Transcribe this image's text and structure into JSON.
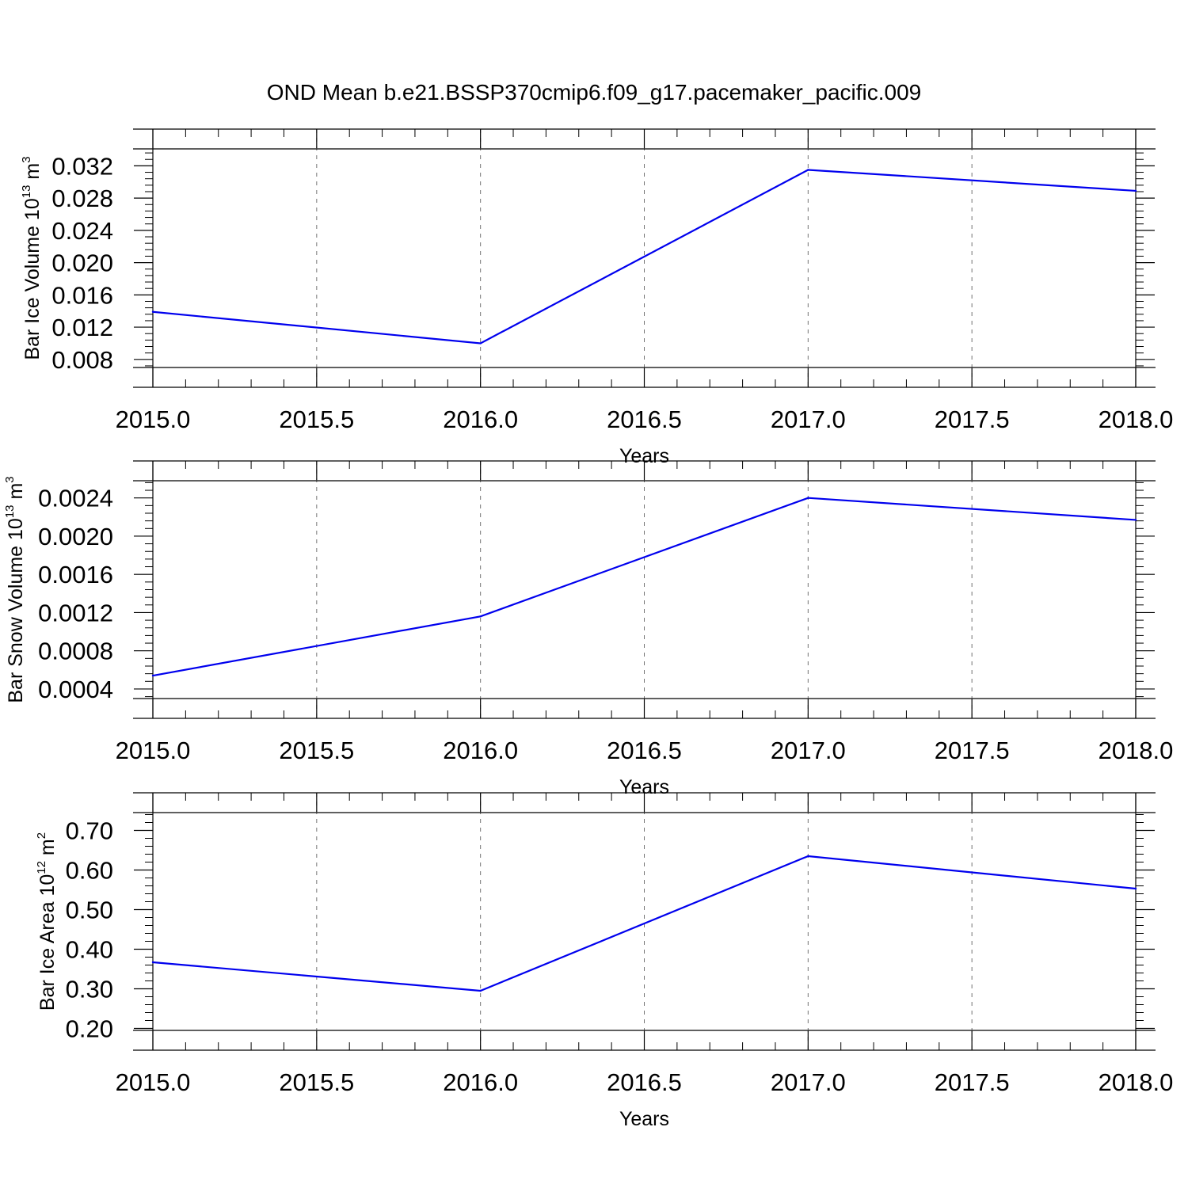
{
  "title": "OND Mean b.e21.BSSP370cmip6.f09_g17.pacemaker_pacific.009",
  "line_color": "#0000ee",
  "chart_data": [
    {
      "type": "line",
      "x": [
        2015,
        2016,
        2017,
        2018
      ],
      "y": [
        0.0139,
        0.01,
        0.0315,
        0.0289
      ],
      "xlabel": "Years",
      "ylabel": {
        "text": "Bar Ice Volume 10",
        "sup": "13",
        "unit": " m",
        "unit_sup": "3"
      },
      "xlim": [
        2015.0,
        2018.0
      ],
      "ylim": [
        0.007,
        0.0341
      ],
      "xticks": [
        2015.0,
        2015.5,
        2016.0,
        2016.5,
        2017.0,
        2017.5,
        2018.0
      ],
      "xtick_labels": [
        "2015.0",
        "2015.5",
        "2016.0",
        "2016.5",
        "2017.0",
        "2017.5",
        "2018.0"
      ],
      "yticks": [
        0.008,
        0.012,
        0.016,
        0.02,
        0.024,
        0.028,
        0.032
      ],
      "ytick_labels": [
        "0.008",
        "0.012",
        "0.016",
        "0.020",
        "0.024",
        "0.028",
        "0.032"
      ],
      "grid": "vertical dashed at major x ticks"
    },
    {
      "type": "line",
      "x": [
        2015,
        2016,
        2017,
        2018
      ],
      "y": [
        0.00054,
        0.00116,
        0.0024,
        0.00217
      ],
      "xlabel": "Years",
      "ylabel": {
        "text": "Bar Snow Volume 10",
        "sup": "13",
        "unit": " m",
        "unit_sup": "3"
      },
      "xlim": [
        2015.0,
        2018.0
      ],
      "ylim": [
        0.0003,
        0.00258
      ],
      "xticks": [
        2015.0,
        2015.5,
        2016.0,
        2016.5,
        2017.0,
        2017.5,
        2018.0
      ],
      "xtick_labels": [
        "2015.0",
        "2015.5",
        "2016.0",
        "2016.5",
        "2017.0",
        "2017.5",
        "2018.0"
      ],
      "yticks": [
        0.0004,
        0.0008,
        0.0012,
        0.0016,
        0.002,
        0.0024
      ],
      "ytick_labels": [
        "0.0004",
        "0.0008",
        "0.0012",
        "0.0016",
        "0.0020",
        "0.0024"
      ],
      "grid": "vertical dashed at major x ticks"
    },
    {
      "type": "line",
      "x": [
        2015,
        2016,
        2017,
        2018
      ],
      "y": [
        0.367,
        0.295,
        0.635,
        0.553
      ],
      "xlabel": "Years",
      "ylabel": {
        "text": "Bar Ice Area 10",
        "sup": "12",
        "unit": " m",
        "unit_sup": "2"
      },
      "xlim": [
        2015.0,
        2018.0
      ],
      "ylim": [
        0.195,
        0.745
      ],
      "xticks": [
        2015.0,
        2015.5,
        2016.0,
        2016.5,
        2017.0,
        2017.5,
        2018.0
      ],
      "xtick_labels": [
        "2015.0",
        "2015.5",
        "2016.0",
        "2016.5",
        "2017.0",
        "2017.5",
        "2018.0"
      ],
      "yticks": [
        0.2,
        0.3,
        0.4,
        0.5,
        0.6,
        0.7
      ],
      "ytick_labels": [
        "0.20",
        "0.30",
        "0.40",
        "0.50",
        "0.60",
        "0.70"
      ],
      "grid": "vertical dashed at major x ticks"
    }
  ]
}
